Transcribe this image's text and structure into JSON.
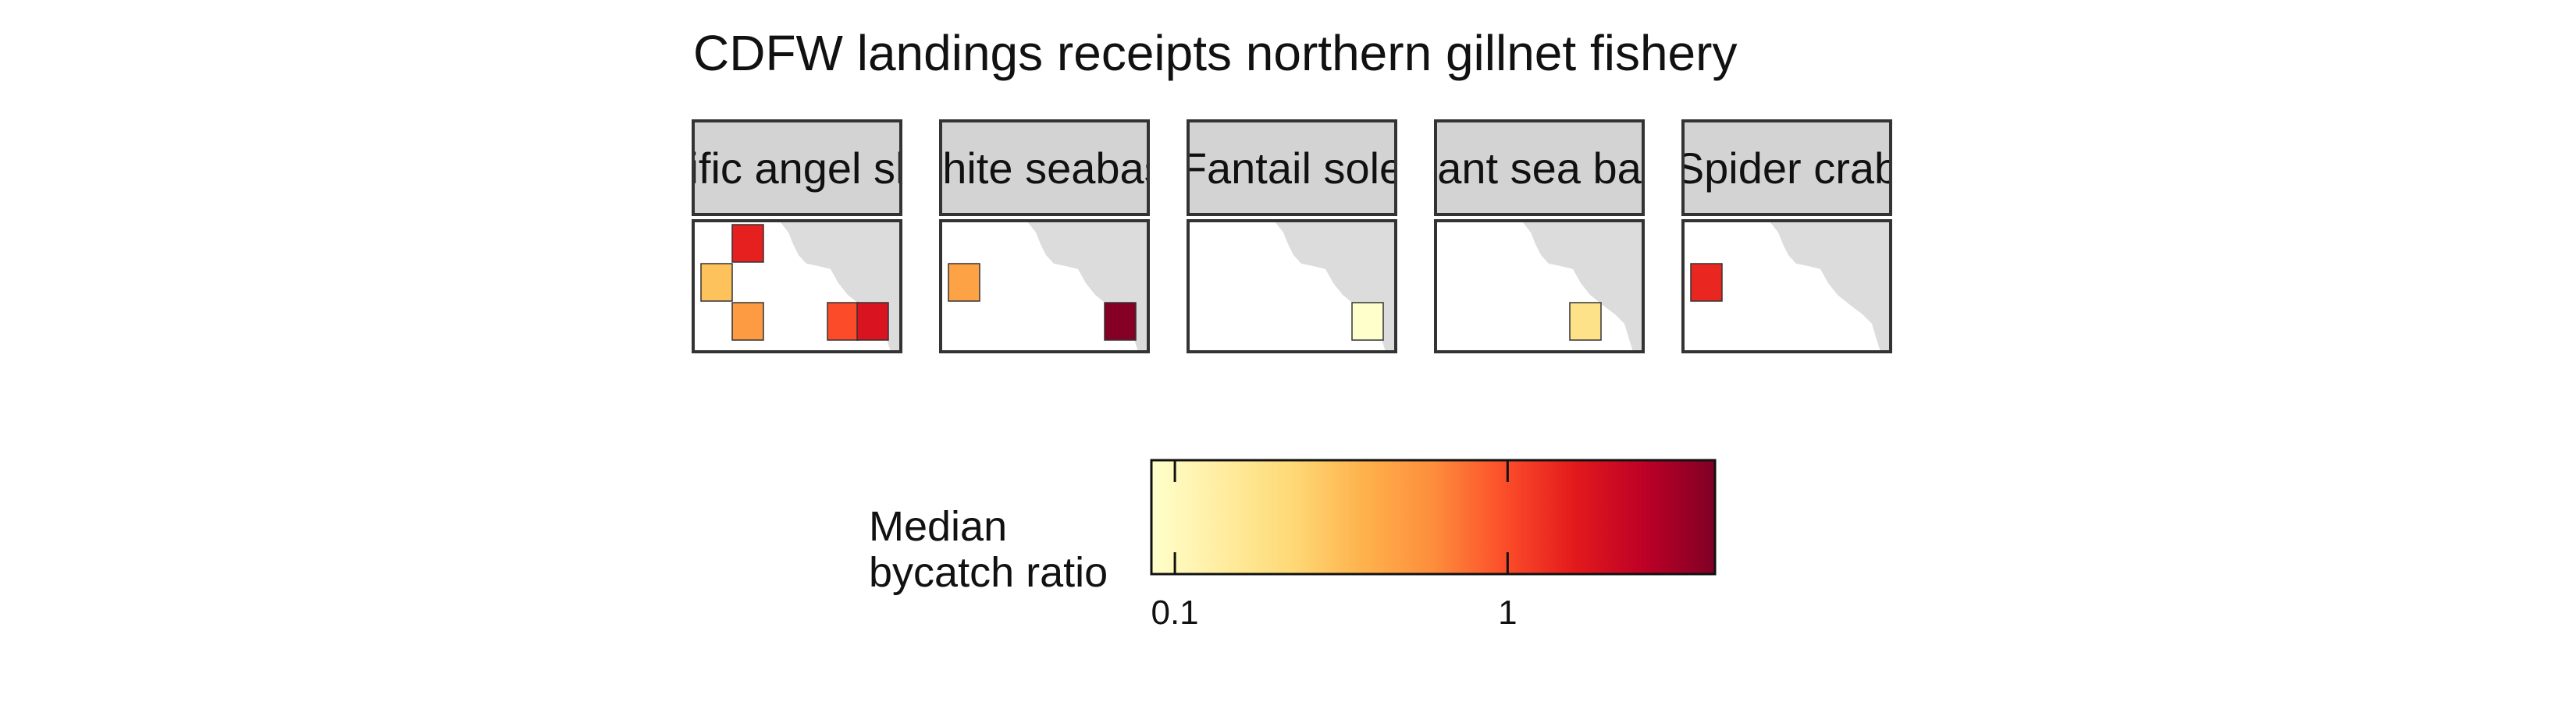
{
  "chart_data": {
    "type": "heatmap",
    "title": "CDFW landings receipts northern gillnet fishery",
    "facets": [
      {
        "label": "Pacific angel shark",
        "cells": [
          {
            "col": 1,
            "row": 0,
            "value": 1.5
          },
          {
            "col": 0,
            "row": 1,
            "value": 0.3
          },
          {
            "col": 1,
            "row": 2,
            "value": 0.5
          },
          {
            "col": 4,
            "row": 2,
            "value": 1.0
          },
          {
            "col": 5,
            "row": 2,
            "value": 1.8
          }
        ]
      },
      {
        "label": "White seabass",
        "cells": [
          {
            "col": 0,
            "row": 1,
            "value": 0.45
          },
          {
            "col": 5,
            "row": 2,
            "value": 4.0
          }
        ]
      },
      {
        "label": "Fantail sole",
        "cells": [
          {
            "col": 5,
            "row": 2,
            "value": 0.08
          }
        ]
      },
      {
        "label": "Giant sea bass",
        "cells": [
          {
            "col": 4,
            "row": 2,
            "value": 0.18
          }
        ]
      },
      {
        "label": "Spider crab",
        "cells": [
          {
            "col": 0,
            "row": 1,
            "value": 1.4
          }
        ]
      }
    ],
    "legend": {
      "title_lines": [
        "Median",
        "bycatch ratio"
      ],
      "scale": "log",
      "range": [
        0.085,
        4.2
      ],
      "ticks": [
        {
          "value": 0.1,
          "label": "0.1"
        },
        {
          "value": 1,
          "label": "1"
        }
      ],
      "colors": [
        "#ffffcc",
        "#ffeda0",
        "#fed976",
        "#feb24c",
        "#fd8d3c",
        "#fc4e2a",
        "#e31a1c",
        "#bd0026",
        "#800026"
      ]
    },
    "land_color": "#dcdcdc",
    "strip_fill": "#d3d3d3",
    "panel_border": "#333333"
  }
}
